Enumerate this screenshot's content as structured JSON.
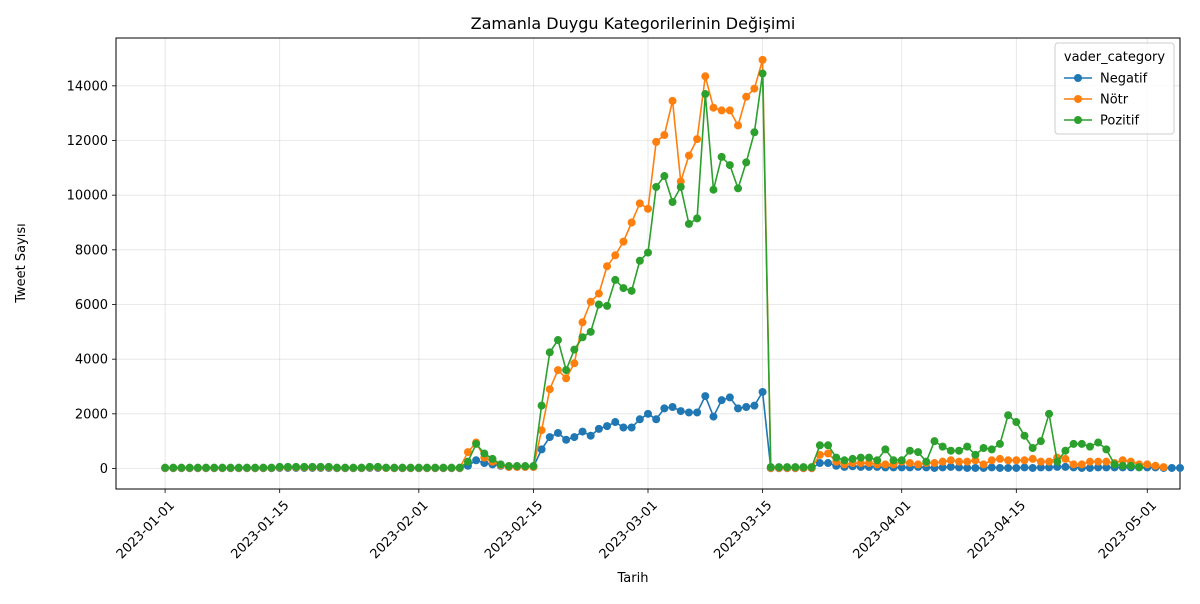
{
  "chart_data": {
    "type": "line",
    "title": "Zamanla Duygu Kategorilerinin Değişimi",
    "xlabel": "Tarih",
    "ylabel": "Tweet Sayısı",
    "x_start": "2023-01-01",
    "x_end": "2023-04-29",
    "xlim": [
      "2022-12-26",
      "2023-05-05"
    ],
    "ylim": [
      -750,
      15750
    ],
    "x_ticks": [
      "2023-01-01",
      "2023-01-15",
      "2023-02-01",
      "2023-02-15",
      "2023-03-01",
      "2023-03-15",
      "2023-04-01",
      "2023-04-15",
      "2023-05-01"
    ],
    "y_ticks": [
      0,
      2000,
      4000,
      6000,
      8000,
      10000,
      12000,
      14000
    ],
    "grid": true,
    "legend": {
      "title": "vader_category",
      "position": "upper right",
      "entries": [
        "Negatif",
        "Nötr",
        "Pozitif"
      ]
    },
    "series": [
      {
        "name": "Negatif",
        "color": "#1f77b4",
        "values": [
          10,
          10,
          10,
          10,
          10,
          10,
          10,
          10,
          10,
          10,
          10,
          10,
          10,
          10,
          20,
          20,
          20,
          20,
          20,
          20,
          20,
          10,
          10,
          10,
          10,
          20,
          20,
          20,
          10,
          10,
          10,
          10,
          10,
          10,
          10,
          10,
          10,
          100,
          300,
          200,
          150,
          100,
          60,
          60,
          60,
          60,
          700,
          1150,
          1300,
          1050,
          1150,
          1350,
          1200,
          1450,
          1550,
          1700,
          1500,
          1500,
          1800,
          2000,
          1800,
          2200,
          2250,
          2100,
          2050,
          2050,
          2650,
          1900,
          2500,
          2600,
          2200,
          2250,
          2300,
          2800,
          10,
          10,
          10,
          10,
          10,
          10,
          200,
          200,
          100,
          60,
          80,
          60,
          60,
          60,
          40,
          40,
          40,
          40,
          60,
          40,
          20,
          40,
          60,
          40,
          20,
          20,
          20,
          40,
          20,
          20,
          20,
          40,
          20,
          40,
          40,
          60,
          60,
          40,
          20,
          20,
          40,
          40,
          40,
          40,
          40,
          40,
          40,
          40,
          20,
          20,
          20
        ]
      },
      {
        "name": "Nötr",
        "color": "#ff7f0e",
        "values": [
          20,
          20,
          20,
          20,
          20,
          20,
          20,
          20,
          20,
          20,
          20,
          20,
          20,
          20,
          40,
          40,
          40,
          40,
          40,
          40,
          40,
          20,
          20,
          20,
          20,
          40,
          40,
          20,
          20,
          20,
          20,
          20,
          20,
          20,
          20,
          20,
          20,
          600,
          950,
          400,
          250,
          120,
          60,
          60,
          60,
          60,
          1400,
          2900,
          3600,
          3300,
          3850,
          5350,
          6100,
          6400,
          7400,
          7800,
          8300,
          9000,
          9700,
          9500,
          11950,
          12200,
          13450,
          10500,
          11450,
          12050,
          14350,
          13200,
          13100,
          13100,
          12550,
          13600,
          13900,
          14950,
          20,
          20,
          20,
          20,
          20,
          20,
          500,
          550,
          250,
          150,
          200,
          200,
          200,
          150,
          150,
          150,
          250,
          200,
          150,
          200,
          200,
          250,
          300,
          250,
          250,
          300,
          150,
          300,
          350,
          300,
          300,
          300,
          350,
          250,
          250,
          400,
          350,
          150,
          150,
          250,
          250,
          250,
          200,
          300,
          250,
          150,
          150,
          100,
          50
        ]
      },
      {
        "name": "Pozitif",
        "color": "#2ca02c",
        "values": [
          30,
          30,
          30,
          30,
          30,
          30,
          30,
          30,
          30,
          30,
          30,
          30,
          30,
          30,
          60,
          60,
          60,
          60,
          60,
          60,
          60,
          30,
          30,
          30,
          30,
          60,
          60,
          30,
          30,
          30,
          30,
          30,
          30,
          30,
          30,
          30,
          30,
          250,
          900,
          550,
          350,
          150,
          90,
          90,
          90,
          90,
          2300,
          4250,
          4700,
          3600,
          4350,
          4800,
          5000,
          6000,
          5950,
          6900,
          6600,
          6500,
          7600,
          7900,
          10300,
          10700,
          9750,
          10300,
          8950,
          9150,
          13700,
          10200,
          11400,
          11100,
          10250,
          11200,
          12300,
          14450,
          50,
          50,
          50,
          50,
          50,
          50,
          850,
          850,
          400,
          300,
          350,
          400,
          400,
          300,
          700,
          300,
          300,
          650,
          600,
          250,
          1000,
          800,
          650,
          650,
          800,
          500,
          750,
          700,
          900,
          1950,
          1700,
          1200,
          750,
          1000,
          2000,
          250,
          650,
          900,
          900,
          800,
          950,
          700,
          150,
          100,
          100,
          50
        ]
      }
    ]
  }
}
